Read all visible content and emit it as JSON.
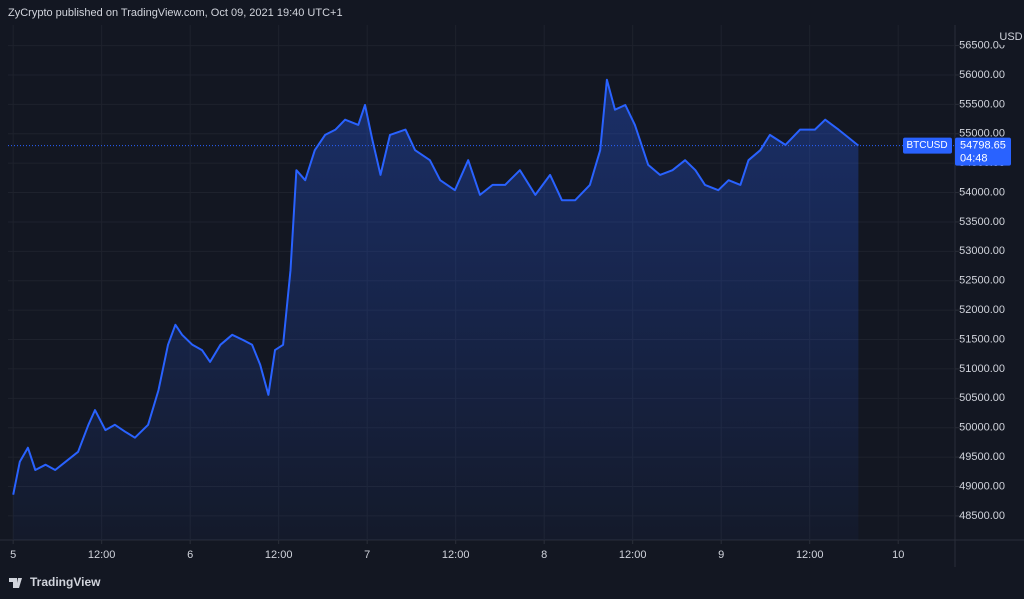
{
  "chart_data": {
    "type": "line",
    "title": "ZyCrypto published on TradingView.com, Oct 09, 2021 19:40 UTC+1",
    "y_unit": "USD",
    "countdown": "04:48",
    "brand": "TradingView",
    "x": [
      0,
      0.9,
      2.0,
      3.0,
      4.4,
      5.7,
      7.1,
      8.8,
      10.2,
      11.1,
      12.5,
      13.8,
      15.2,
      16.5,
      18.3,
      19.7,
      21.0,
      22.0,
      22.9,
      24.3,
      25.6,
      26.7,
      28.1,
      29.7,
      31.2,
      32.4,
      33.5,
      34.6,
      35.5,
      36.6,
      37.6,
      38.4,
      39.6,
      40.9,
      42.3,
      43.7,
      45.0,
      46.8,
      47.7,
      48.7,
      49.8,
      51.1,
      53.2,
      54.5,
      56.5,
      57.9,
      59.9,
      61.7,
      63.3,
      65.0,
      66.7,
      68.7,
      70.8,
      72.8,
      74.4,
      76.2,
      78.2,
      79.6,
      80.5,
      81.6,
      83.0,
      84.3,
      86.1,
      87.7,
      89.4,
      91.1,
      92.5,
      93.8,
      95.6,
      97.0,
      98.6,
      99.7,
      101.3,
      102.6,
      104.7,
      106.7,
      108.7,
      110.1,
      111.9,
      113.6,
      114.6
    ],
    "series": [
      {
        "name": "BTCUSD",
        "color": "#2962ff",
        "values": [
          48860,
          49420,
          49660,
          49280,
          49370,
          49280,
          49420,
          49590,
          50050,
          50300,
          49960,
          50050,
          49930,
          49830,
          50050,
          50640,
          51410,
          51750,
          51580,
          51410,
          51320,
          51120,
          51410,
          51580,
          51490,
          51410,
          51070,
          50560,
          51320,
          51410,
          52680,
          54380,
          54210,
          54720,
          54980,
          55070,
          55240,
          55150,
          55490,
          54900,
          54300,
          54980,
          55070,
          54720,
          54550,
          54210,
          54040,
          54550,
          53960,
          54130,
          54130,
          54380,
          53960,
          54300,
          53870,
          53870,
          54130,
          54720,
          55920,
          55410,
          55490,
          55150,
          54470,
          54300,
          54380,
          54550,
          54380,
          54130,
          54040,
          54210,
          54130,
          54550,
          54720,
          54980,
          54810,
          55070,
          55070,
          55240,
          55070,
          54900,
          54798.65
        ]
      }
    ],
    "xlim": [
      -0.7,
      127.7
    ],
    "xticks": [
      {
        "value": 0,
        "label": "5"
      },
      {
        "value": 12,
        "label": "12:00"
      },
      {
        "value": 24,
        "label": "6"
      },
      {
        "value": 36,
        "label": "12:00"
      },
      {
        "value": 48,
        "label": "7"
      },
      {
        "value": 60,
        "label": "12:00"
      },
      {
        "value": 72,
        "label": "8"
      },
      {
        "value": 84,
        "label": "12:00"
      },
      {
        "value": 96,
        "label": "9"
      },
      {
        "value": 108,
        "label": "12:00"
      },
      {
        "value": 120,
        "label": "10"
      }
    ],
    "ylim": [
      48090,
      56850
    ],
    "yticks": [
      {
        "value": 48500,
        "label": "48500.00"
      },
      {
        "value": 49000,
        "label": "49000.00"
      },
      {
        "value": 49500,
        "label": "49500.00"
      },
      {
        "value": 50000,
        "label": "50000.00"
      },
      {
        "value": 50500,
        "label": "50500.00"
      },
      {
        "value": 51000,
        "label": "51000.00"
      },
      {
        "value": 51500,
        "label": "51500.00"
      },
      {
        "value": 52000,
        "label": "52000.00"
      },
      {
        "value": 52500,
        "label": "52500.00"
      },
      {
        "value": 53000,
        "label": "53000.00"
      },
      {
        "value": 53500,
        "label": "53500.00"
      },
      {
        "value": 54000,
        "label": "54000.00"
      },
      {
        "value": 54500,
        "label": "54500.00"
      },
      {
        "value": 55000,
        "label": "55000.00"
      },
      {
        "value": 55500,
        "label": "55500.00"
      },
      {
        "value": 56000,
        "label": "56000.00"
      },
      {
        "value": 56500,
        "label": "56500.00"
      }
    ],
    "grid": true
  }
}
